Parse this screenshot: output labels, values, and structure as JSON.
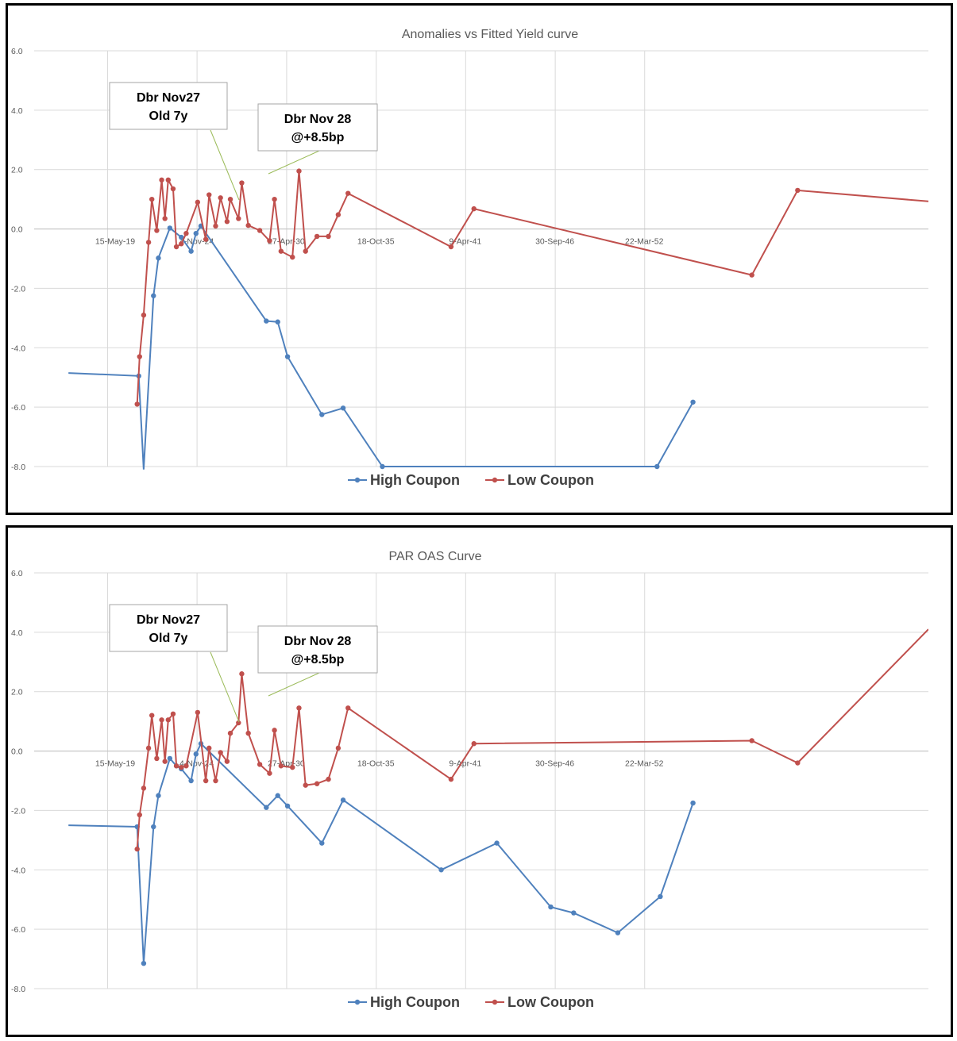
{
  "chart_data": [
    {
      "type": "line",
      "title": "Anomalies vs Fitted Yield curve",
      "x_tick_labels": [
        "15-May-19",
        "4-Nov-24",
        "27-Apr-30",
        "18-Oct-35",
        "9-Apr-41",
        "30-Sep-46",
        "22-Mar-52"
      ],
      "ylim": [
        -8.0,
        6.0
      ],
      "y_ticks": [
        "6.0",
        "4.0",
        "2.0",
        "0.0",
        "-2.0",
        "-4.0",
        "-6.0",
        "-8.0"
      ],
      "legend": "bottom",
      "grid": true,
      "series": [
        {
          "name": "High Coupon",
          "color": "#4f81bd",
          "points": [
            [
              2017.0,
              -4.85
            ],
            [
              2021.3,
              -4.95
            ],
            [
              2021.6,
              -8.1
            ],
            [
              2022.2,
              -2.25
            ],
            [
              2022.5,
              -0.98
            ],
            [
              2023.2,
              0.03
            ],
            [
              2023.9,
              -0.28
            ],
            [
              2024.5,
              -0.75
            ],
            [
              2024.8,
              -0.15
            ],
            [
              2025.1,
              0.1
            ],
            [
              2029.1,
              -3.1
            ],
            [
              2029.8,
              -3.13
            ],
            [
              2030.4,
              -4.3
            ],
            [
              2032.5,
              -6.25
            ],
            [
              2033.8,
              -6.03
            ],
            [
              2036.2,
              -8.0
            ],
            [
              2053.0,
              -8.0
            ],
            [
              2055.2,
              -5.83
            ]
          ]
        },
        {
          "name": "Low Coupon",
          "color": "#c0504d",
          "points": [
            [
              2021.2,
              -5.9
            ],
            [
              2021.35,
              -4.3
            ],
            [
              2021.6,
              -2.9
            ],
            [
              2021.9,
              -0.45
            ],
            [
              2022.1,
              1.0
            ],
            [
              2022.4,
              -0.05
            ],
            [
              2022.7,
              1.65
            ],
            [
              2022.9,
              0.35
            ],
            [
              2023.1,
              1.65
            ],
            [
              2023.4,
              1.35
            ],
            [
              2023.6,
              -0.6
            ],
            [
              2023.9,
              -0.5
            ],
            [
              2024.2,
              -0.15
            ],
            [
              2024.9,
              0.9
            ],
            [
              2025.4,
              -0.35
            ],
            [
              2025.6,
              1.15
            ],
            [
              2026.0,
              0.1
            ],
            [
              2026.3,
              1.05
            ],
            [
              2026.7,
              0.25
            ],
            [
              2026.9,
              1.0
            ],
            [
              2027.4,
              0.35
            ],
            [
              2027.6,
              1.55
            ],
            [
              2028.0,
              0.12
            ],
            [
              2028.7,
              -0.05
            ],
            [
              2029.3,
              -0.4
            ],
            [
              2029.6,
              1.0
            ],
            [
              2030.0,
              -0.75
            ],
            [
              2030.7,
              -0.95
            ],
            [
              2031.1,
              1.95
            ],
            [
              2031.5,
              -0.75
            ],
            [
              2032.2,
              -0.25
            ],
            [
              2032.9,
              -0.25
            ],
            [
              2033.5,
              0.48
            ],
            [
              2034.1,
              1.2
            ],
            [
              2040.4,
              -0.6
            ],
            [
              2041.8,
              0.68
            ],
            [
              2058.8,
              -1.55
            ],
            [
              2061.6,
              1.3
            ],
            [
              2069.6,
              0.93
            ]
          ]
        }
      ],
      "annotations": [
        {
          "lines": [
            "Dbr Nov27",
            "Old 7y"
          ]
        },
        {
          "lines": [
            "Dbr Nov 28",
            "@+8.5bp"
          ]
        }
      ]
    },
    {
      "type": "line",
      "title": "PAR OAS Curve",
      "x_tick_labels": [
        "15-May-19",
        "4-Nov-24",
        "27-Apr-30",
        "18-Oct-35",
        "9-Apr-41",
        "30-Sep-46",
        "22-Mar-52"
      ],
      "ylim": [
        -8.0,
        6.0
      ],
      "y_ticks": [
        "6.0",
        "4.0",
        "2.0",
        "0.0",
        "-2.0",
        "-4.0",
        "-6.0",
        "-8.0"
      ],
      "legend": "bottom",
      "grid": true,
      "series": [
        {
          "name": "High Coupon",
          "color": "#4f81bd",
          "points": [
            [
              2017.0,
              -2.5
            ],
            [
              2021.2,
              -2.55
            ],
            [
              2021.6,
              -7.15
            ],
            [
              2022.2,
              -2.55
            ],
            [
              2022.5,
              -1.5
            ],
            [
              2023.2,
              -0.25
            ],
            [
              2023.6,
              -0.5
            ],
            [
              2023.9,
              -0.6
            ],
            [
              2024.5,
              -1.0
            ],
            [
              2024.8,
              -0.1
            ],
            [
              2025.1,
              0.25
            ],
            [
              2029.1,
              -1.9
            ],
            [
              2029.8,
              -1.5
            ],
            [
              2030.4,
              -1.85
            ],
            [
              2032.5,
              -3.1
            ],
            [
              2033.8,
              -1.65
            ],
            [
              2039.8,
              -4.0
            ],
            [
              2043.2,
              -3.1
            ],
            [
              2046.5,
              -5.25
            ],
            [
              2047.9,
              -5.45
            ],
            [
              2050.6,
              -6.12
            ],
            [
              2053.2,
              -4.9
            ],
            [
              2055.2,
              -1.75
            ]
          ]
        },
        {
          "name": "Low Coupon",
          "color": "#c0504d",
          "points": [
            [
              2021.2,
              -3.3
            ],
            [
              2021.35,
              -2.15
            ],
            [
              2021.6,
              -1.25
            ],
            [
              2021.9,
              0.1
            ],
            [
              2022.1,
              1.2
            ],
            [
              2022.4,
              -0.25
            ],
            [
              2022.7,
              1.05
            ],
            [
              2022.9,
              -0.35
            ],
            [
              2023.1,
              1.05
            ],
            [
              2023.4,
              1.25
            ],
            [
              2023.6,
              -0.5
            ],
            [
              2023.9,
              -0.55
            ],
            [
              2024.2,
              -0.5
            ],
            [
              2024.9,
              1.3
            ],
            [
              2025.4,
              -1.0
            ],
            [
              2025.6,
              0.1
            ],
            [
              2026.0,
              -1.0
            ],
            [
              2026.3,
              -0.05
            ],
            [
              2026.7,
              -0.35
            ],
            [
              2026.9,
              0.6
            ],
            [
              2027.4,
              0.95
            ],
            [
              2027.6,
              2.6
            ],
            [
              2028.0,
              0.6
            ],
            [
              2028.7,
              -0.45
            ],
            [
              2029.3,
              -0.75
            ],
            [
              2029.6,
              0.7
            ],
            [
              2030.0,
              -0.5
            ],
            [
              2030.7,
              -0.55
            ],
            [
              2031.1,
              1.45
            ],
            [
              2031.5,
              -1.15
            ],
            [
              2032.2,
              -1.1
            ],
            [
              2032.9,
              -0.95
            ],
            [
              2033.5,
              0.1
            ],
            [
              2034.1,
              1.45
            ],
            [
              2040.4,
              -0.95
            ],
            [
              2041.8,
              0.25
            ],
            [
              2058.8,
              0.35
            ],
            [
              2061.6,
              -0.4
            ],
            [
              2069.6,
              4.1
            ]
          ]
        }
      ],
      "annotations": [
        {
          "lines": [
            "Dbr Nov27",
            "Old 7y"
          ]
        },
        {
          "lines": [
            "Dbr Nov 28",
            "@+8.5bp"
          ]
        }
      ]
    }
  ]
}
